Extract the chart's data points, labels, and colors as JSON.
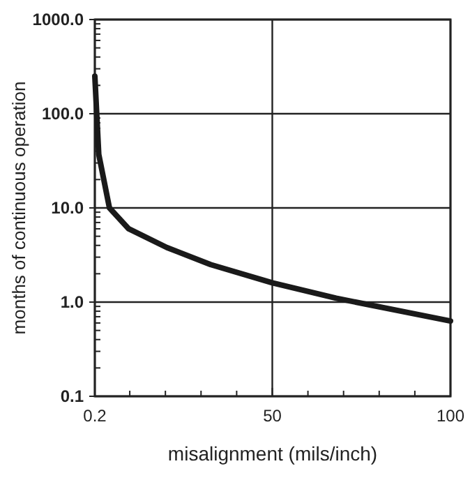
{
  "chart_data": {
    "type": "line",
    "xlabel": "misalignment (mils/inch)",
    "ylabel": "months of continuous operation",
    "x": [
      0.2,
      1.3,
      4.3,
      9.7,
      20.4,
      32.7,
      50,
      67.9,
      100
    ],
    "series": [
      {
        "color": "#1a1a1a",
        "values": [
          250,
          37,
          10,
          6,
          3.8,
          2.5,
          1.6,
          1.1,
          0.63
        ]
      }
    ],
    "log": "y",
    "grid": true,
    "marker": "none",
    "line_style": "solid",
    "xlim": [
      0.2,
      100
    ],
    "xticks": [
      0.2,
      {
        "value": 10,
        "label": null
      },
      {
        "value": 20,
        "label": null
      },
      {
        "value": 30,
        "label": null
      },
      {
        "value": 40,
        "label": null
      },
      50,
      {
        "value": 60,
        "label": null
      },
      {
        "value": 70,
        "label": null
      },
      {
        "value": 80,
        "label": null
      },
      {
        "value": 90,
        "label": null
      },
      100
    ],
    "ylim": [
      0.1,
      1000
    ],
    "yticks": [
      {
        "value": 0.1,
        "label": "0.1"
      },
      {
        "value": 1,
        "label": "1.0"
      },
      {
        "value": 10,
        "label": "10.0"
      },
      {
        "value": 100,
        "label": "100.0"
      },
      {
        "value": 1000,
        "label": "1000.0"
      }
    ]
  }
}
